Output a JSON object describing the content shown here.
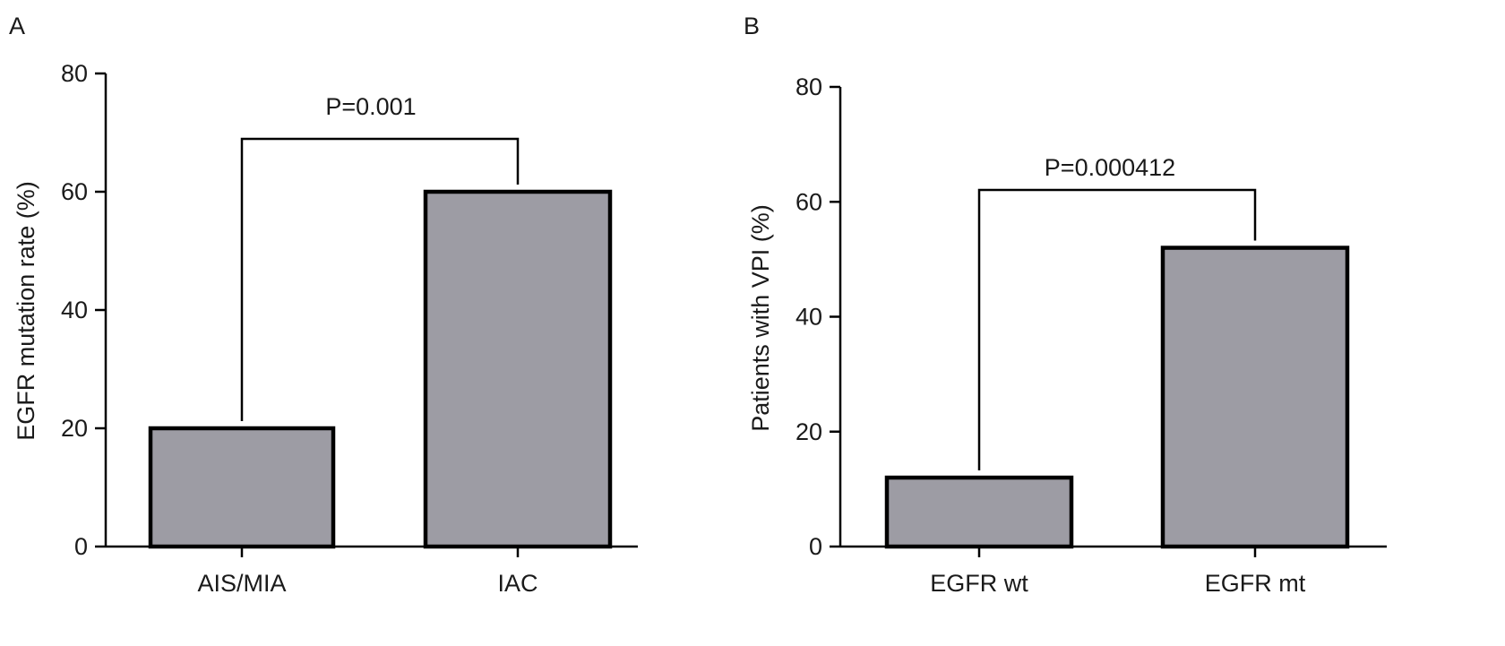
{
  "chart_data": [
    {
      "panel": "A",
      "type": "bar",
      "categories": [
        "AIS/MIA",
        "IAC"
      ],
      "values": [
        20,
        60
      ],
      "ylabel": "EGFR mutation rate (%)",
      "xlabel": "",
      "ylim": [
        0,
        80
      ],
      "yticks": [
        "0",
        "20",
        "40",
        "60",
        "80"
      ],
      "annotations": [
        {
          "text": "P=0.001",
          "between": [
            0,
            1
          ]
        }
      ],
      "bar_color": "#9d9ca4",
      "grid": false,
      "legend": "none"
    },
    {
      "panel": "B",
      "type": "bar",
      "categories": [
        "EGFR wt",
        "EGFR mt"
      ],
      "values": [
        12,
        52
      ],
      "ylabel": "Patients with VPI (%)",
      "xlabel": "",
      "ylim": [
        0,
        80
      ],
      "yticks": [
        "0",
        "20",
        "40",
        "60",
        "80"
      ],
      "annotations": [
        {
          "text": "P=0.000412",
          "between": [
            0,
            1
          ]
        }
      ],
      "bar_color": "#9d9ca4",
      "grid": false,
      "legend": "none"
    }
  ]
}
